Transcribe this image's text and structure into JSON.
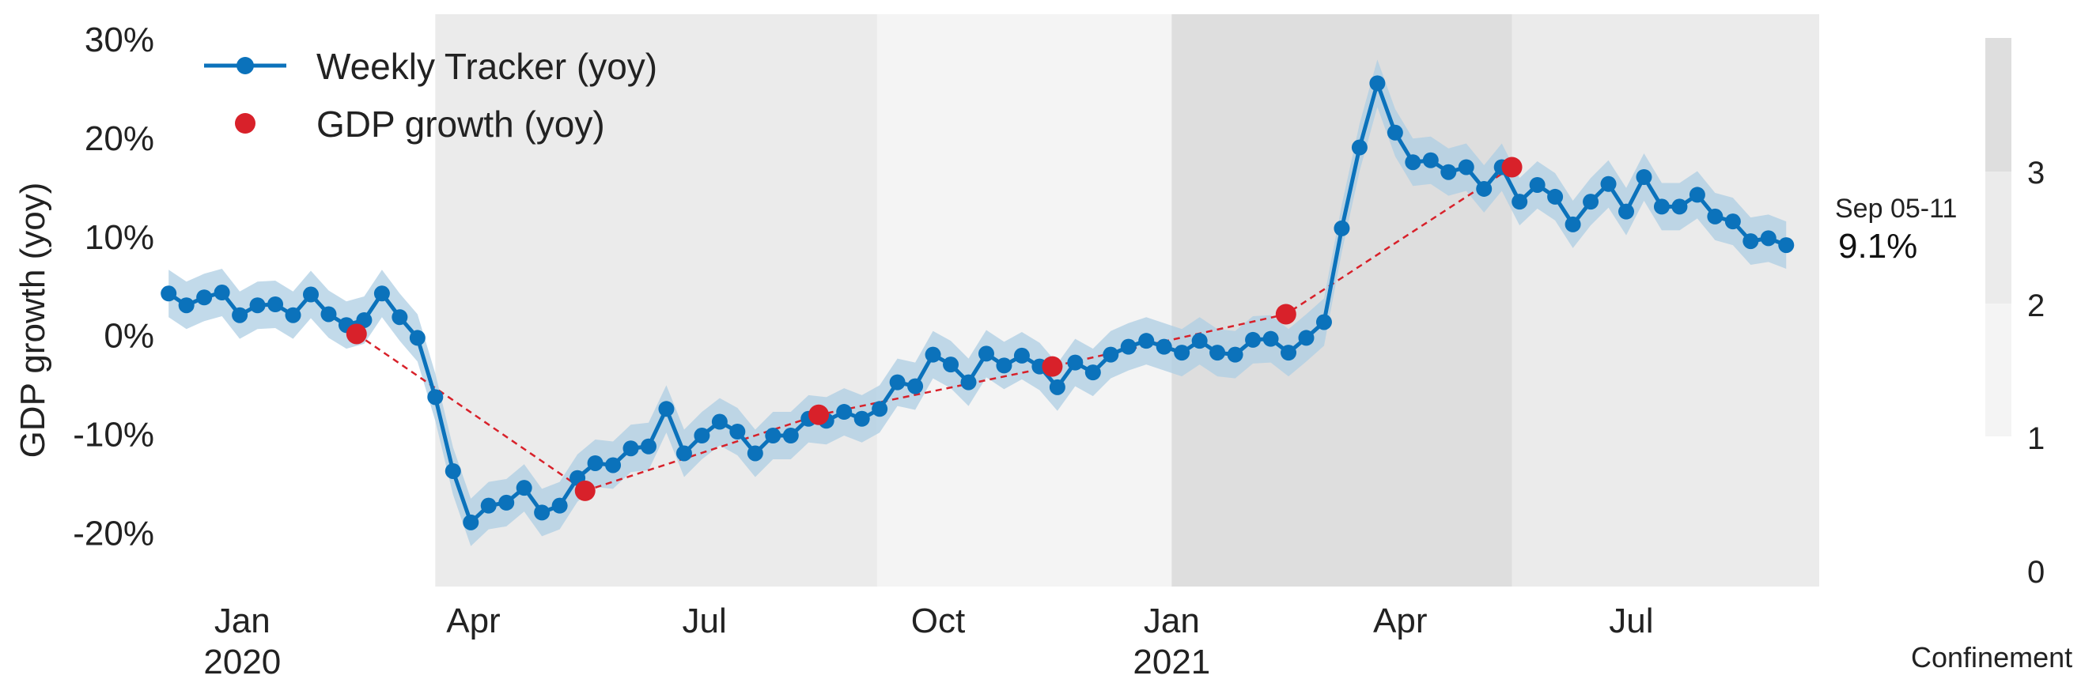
{
  "chart_data": {
    "type": "line",
    "ylabel": "GDP growth (yoy)",
    "y_ticks": [
      "30%",
      "20%",
      "10%",
      "0%",
      "-10%",
      "-20%"
    ],
    "y_tick_values": [
      30,
      20,
      10,
      0,
      -10,
      -20
    ],
    "ylim": [
      -25.5,
      32.5
    ],
    "xlim": [
      "2019-12-02",
      "2021-09-13"
    ],
    "x_ticks": [
      {
        "date": "2020-01-01",
        "label": "Jan",
        "year": "2020"
      },
      {
        "date": "2020-04-01",
        "label": "Apr",
        "year": ""
      },
      {
        "date": "2020-07-01",
        "label": "Jul",
        "year": ""
      },
      {
        "date": "2020-10-01",
        "label": "Oct",
        "year": ""
      },
      {
        "date": "2021-01-01",
        "label": "Jan",
        "year": "2021"
      },
      {
        "date": "2021-04-01",
        "label": "Apr",
        "year": ""
      },
      {
        "date": "2021-07-01",
        "label": "Jul",
        "year": ""
      }
    ],
    "legend": {
      "position": "top-left",
      "entries": [
        "Weekly Tracker (yoy)",
        "GDP growth (yoy)"
      ]
    },
    "colors": {
      "tracker": "#0b72bb",
      "band": "#aecde3",
      "gdp": "#d8212a",
      "confinement_1": "#f4f4f4",
      "confinement_2": "#ebebeb",
      "confinement_3": "#dedede"
    },
    "confinement_periods": [
      {
        "start": "2020-03-17",
        "end": "2020-09-07",
        "level": 2
      },
      {
        "start": "2020-09-07",
        "end": "2021-01-01",
        "level": 1
      },
      {
        "start": "2021-01-01",
        "end": "2021-05-15",
        "level": 3
      },
      {
        "start": "2021-05-15",
        "end": "2021-09-13",
        "level": 2
      }
    ],
    "confinement_legend": {
      "title": "Confinement",
      "levels": [
        {
          "label": "3",
          "value": 3
        },
        {
          "label": "2",
          "value": 2
        },
        {
          "label": "1",
          "value": 1
        },
        {
          "label": "0",
          "value": 0
        }
      ]
    },
    "annotation": {
      "label": "Sep 05-11",
      "value": "9.1%",
      "date": "2021-09-08",
      "y": 9.1
    },
    "series": [
      {
        "name": "Weekly Tracker (yoy)",
        "start": "2019-12-03",
        "step_days": 7,
        "band_width": 2.4,
        "values": [
          4.2,
          3.0,
          3.8,
          4.3,
          2.0,
          3.0,
          3.1,
          2.0,
          4.1,
          2.1,
          1.0,
          1.5,
          4.2,
          1.8,
          -0.3,
          -6.3,
          -13.8,
          -19.0,
          -17.3,
          -17.0,
          -15.5,
          -18.0,
          -17.3,
          -14.5,
          -13.0,
          -13.2,
          -11.5,
          -11.3,
          -7.5,
          -12.0,
          -10.2,
          -8.8,
          -9.8,
          -12.0,
          -10.2,
          -10.2,
          -8.5,
          -8.7,
          -7.8,
          -8.5,
          -7.5,
          -4.8,
          -5.2,
          -2.0,
          -3.0,
          -4.8,
          -1.9,
          -3.1,
          -2.1,
          -3.2,
          -5.3,
          -2.8,
          -3.8,
          -2.0,
          -1.2,
          -0.6,
          -1.2,
          -1.8,
          -0.6,
          -1.8,
          -2.0,
          -0.5,
          -0.4,
          -1.8,
          -0.3,
          1.3,
          10.8,
          19.0,
          25.5,
          20.5,
          17.5,
          17.7,
          16.5,
          17.0,
          14.8,
          17.0,
          13.5,
          15.2,
          14.0,
          11.2,
          13.5,
          15.3,
          12.5,
          16.0,
          13.0,
          13.0,
          14.2,
          12.0,
          11.5,
          9.5,
          9.8,
          9.1
        ]
      },
      {
        "name": "GDP growth (yoy)",
        "points": [
          {
            "date": "2020-02-15",
            "y": 0.1
          },
          {
            "date": "2020-05-15",
            "y": -15.8
          },
          {
            "date": "2020-08-15",
            "y": -8.1
          },
          {
            "date": "2020-11-15",
            "y": -3.2
          },
          {
            "date": "2021-02-15",
            "y": 2.1
          },
          {
            "date": "2021-05-15",
            "y": 17.0
          }
        ]
      }
    ]
  }
}
